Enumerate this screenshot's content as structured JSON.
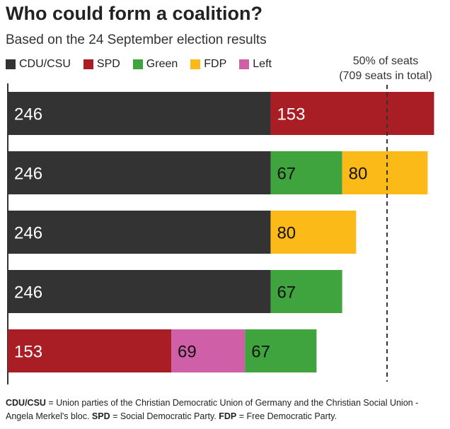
{
  "chart_data": {
    "type": "bar",
    "orientation": "horizontal",
    "stacked": true,
    "title": "Who could form a coalition?",
    "subtitle": "Based on the 24 September election results",
    "xlim": [
      0,
      400
    ],
    "legend": [
      {
        "name": "CDU/CSU",
        "color": "#333333"
      },
      {
        "name": "SPD",
        "color": "#a91d24"
      },
      {
        "name": "Green",
        "color": "#3fa33e"
      },
      {
        "name": "FDP",
        "color": "#fbba18"
      },
      {
        "name": "Left",
        "color": "#cf5fa6"
      }
    ],
    "reference_line": {
      "value": 355,
      "label_line1": "50% of seats",
      "label_line2": "(709 seats in total)"
    },
    "rows": [
      {
        "segments": [
          {
            "party": "CDU/CSU",
            "value": 246,
            "color": "#333333",
            "label_color": "#ffffff"
          },
          {
            "party": "SPD",
            "value": 153,
            "color": "#a91d24",
            "label_color": "#ffffff"
          }
        ]
      },
      {
        "segments": [
          {
            "party": "CDU/CSU",
            "value": 246,
            "color": "#333333",
            "label_color": "#ffffff"
          },
          {
            "party": "Green",
            "value": 67,
            "color": "#3fa33e",
            "label_color": "#111111"
          },
          {
            "party": "FDP",
            "value": 80,
            "color": "#fbba18",
            "label_color": "#111111"
          }
        ]
      },
      {
        "segments": [
          {
            "party": "CDU/CSU",
            "value": 246,
            "color": "#333333",
            "label_color": "#ffffff"
          },
          {
            "party": "FDP",
            "value": 80,
            "color": "#fbba18",
            "label_color": "#111111"
          }
        ]
      },
      {
        "segments": [
          {
            "party": "CDU/CSU",
            "value": 246,
            "color": "#333333",
            "label_color": "#ffffff"
          },
          {
            "party": "Green",
            "value": 67,
            "color": "#3fa33e",
            "label_color": "#111111"
          }
        ]
      },
      {
        "segments": [
          {
            "party": "SPD",
            "value": 153,
            "color": "#a91d24",
            "label_color": "#ffffff"
          },
          {
            "party": "Left",
            "value": 69,
            "color": "#cf5fa6",
            "label_color": "#111111"
          },
          {
            "party": "Green",
            "value": 67,
            "color": "#3fa33e",
            "label_color": "#111111"
          }
        ]
      }
    ]
  },
  "footnote": {
    "cdu_abbr": "CDU/CSU",
    "cdu_text": " = Union parties of the Christian Democratic Union of Germany and the Christian Social Union - Angela Merkel's bloc. ",
    "spd_abbr": "SPD",
    "spd_text": " = Social Democratic Party. ",
    "fdp_abbr": "FDP",
    "fdp_text": " = Free Democratic Party."
  }
}
